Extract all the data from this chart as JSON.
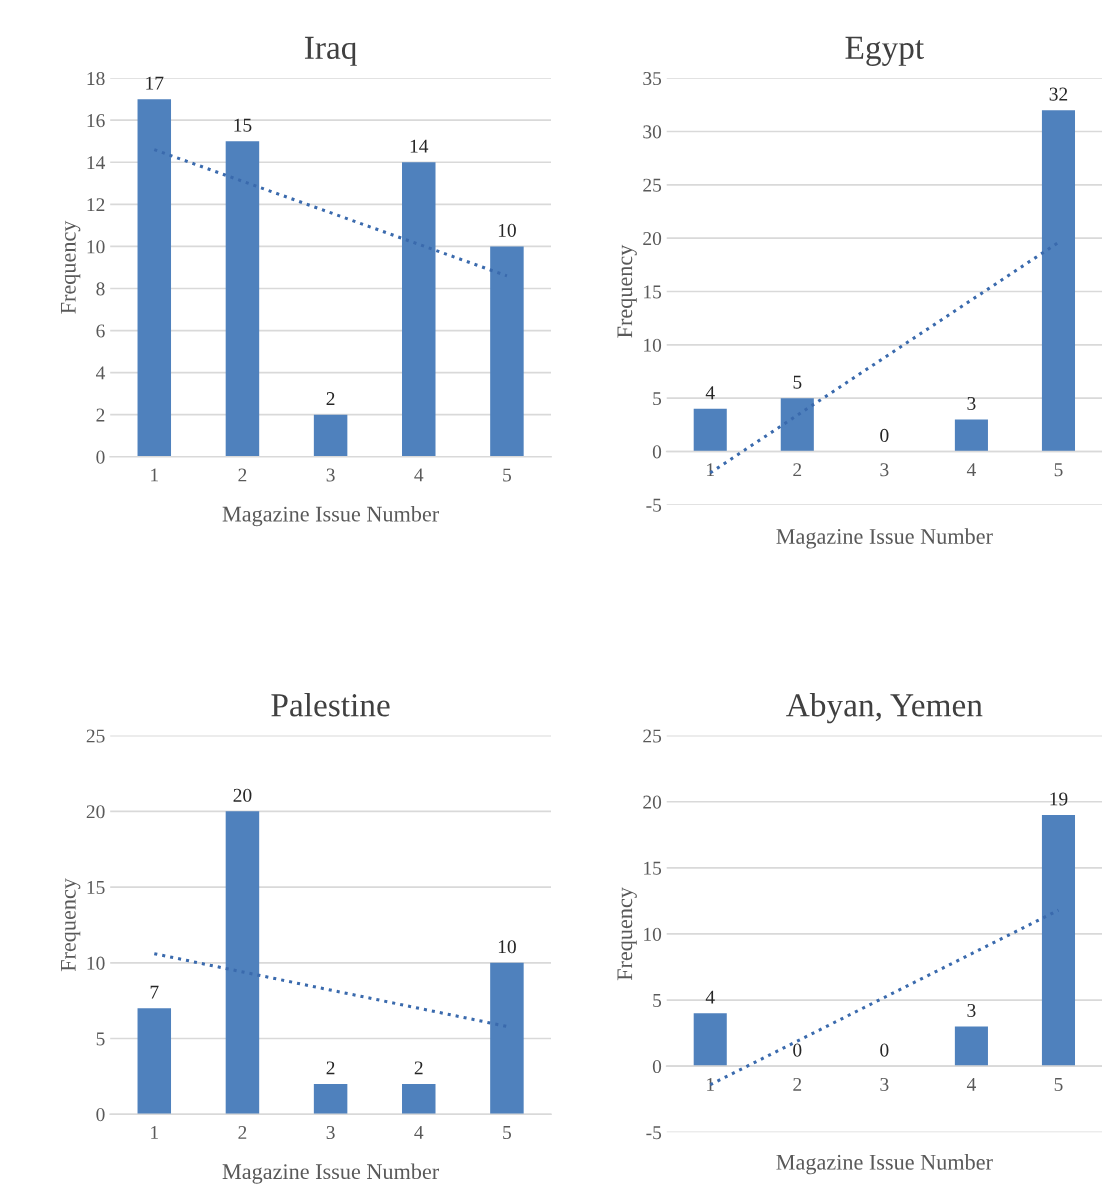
{
  "chart_data": [
    {
      "type": "bar",
      "title": "Iraq",
      "xlabel": "Magazine Issue Number",
      "ylabel": "Frequency",
      "categories": [
        "1",
        "2",
        "3",
        "4",
        "5"
      ],
      "ylim": [
        0,
        18
      ],
      "yticks": [
        0,
        2,
        4,
        6,
        8,
        10,
        12,
        14,
        16,
        18
      ],
      "grid": "y",
      "series": [
        {
          "color": "#4f81bd",
          "values": [
            17,
            15,
            2,
            14,
            10
          ],
          "value_labels": [
            "17",
            "15",
            "2",
            "14",
            "10"
          ]
        },
        {
          "type": "line",
          "color": "#3a6aad",
          "line_style": "dotted",
          "x": [
            "1",
            "5"
          ],
          "values": [
            14.6,
            8.6
          ]
        }
      ]
    },
    {
      "type": "bar",
      "title": "Egypt",
      "xlabel": "Magazine Issue Number",
      "ylabel": "Frequency",
      "categories": [
        "1",
        "2",
        "3",
        "4",
        "5"
      ],
      "ylim": [
        -5,
        35
      ],
      "yticks": [
        -5,
        0,
        5,
        10,
        15,
        20,
        25,
        30,
        35
      ],
      "grid": "y",
      "series": [
        {
          "color": "#4f81bd",
          "values": [
            4,
            5,
            0,
            3,
            32
          ],
          "value_labels": [
            "4",
            "5",
            "0",
            "3",
            "32"
          ]
        },
        {
          "type": "line",
          "color": "#3a6aad",
          "line_style": "dotted",
          "x": [
            "1",
            "5"
          ],
          "values": [
            -2.0,
            19.6
          ]
        }
      ]
    },
    {
      "type": "bar",
      "title": "Palestine",
      "xlabel": "Magazine Issue Number",
      "ylabel": "Frequency",
      "categories": [
        "1",
        "2",
        "3",
        "4",
        "5"
      ],
      "ylim": [
        0,
        25
      ],
      "yticks": [
        0,
        5,
        10,
        15,
        20,
        25
      ],
      "grid": "y",
      "series": [
        {
          "color": "#4f81bd",
          "values": [
            7,
            20,
            2,
            2,
            10
          ],
          "value_labels": [
            "7",
            "20",
            "2",
            "2",
            "10"
          ]
        },
        {
          "type": "line",
          "color": "#3a6aad",
          "line_style": "dotted",
          "x": [
            "1",
            "5"
          ],
          "values": [
            10.6,
            5.8
          ]
        }
      ]
    },
    {
      "type": "bar",
      "title": "Abyan, Yemen",
      "xlabel": "Magazine Issue Number",
      "ylabel": "Frequency",
      "categories": [
        "1",
        "2",
        "3",
        "4",
        "5"
      ],
      "ylim": [
        -5,
        25
      ],
      "yticks": [
        -5,
        0,
        5,
        10,
        15,
        20,
        25
      ],
      "grid": "y",
      "series": [
        {
          "color": "#4f81bd",
          "values": [
            4,
            0,
            0,
            3,
            19
          ],
          "value_labels": [
            "4",
            "0",
            "0",
            "3",
            "19"
          ]
        },
        {
          "type": "line",
          "color": "#3a6aad",
          "line_style": "dotted",
          "x": [
            "1",
            "5"
          ],
          "values": [
            -1.4,
            11.8
          ]
        }
      ]
    }
  ]
}
